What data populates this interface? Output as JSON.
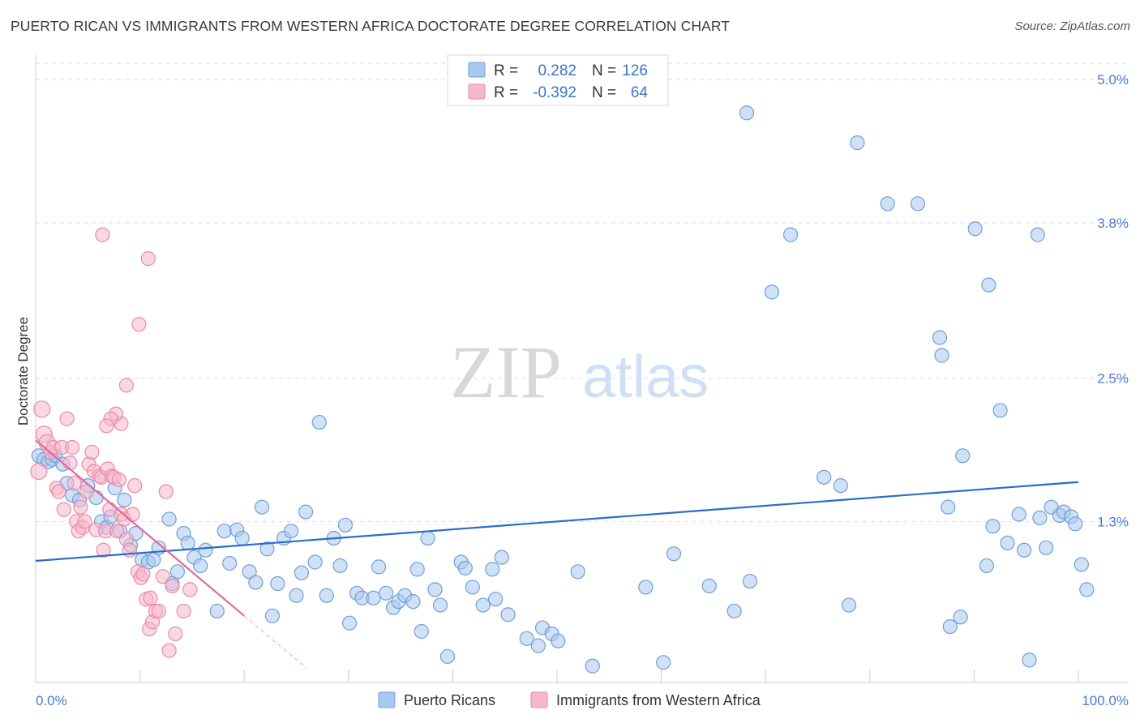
{
  "title": "PUERTO RICAN VS IMMIGRANTS FROM WESTERN AFRICA DOCTORATE DEGREE CORRELATION CHART",
  "source": "Source: ZipAtlas.com",
  "watermark": {
    "zip": "ZIP",
    "atlas": "atlas"
  },
  "colors": {
    "blue_fill": "#a9c8ef",
    "blue_stroke": "#6f9fd8",
    "blue_line": "#2a6ccb",
    "pink_fill": "#f5b8ca",
    "pink_stroke": "#e98aa8",
    "pink_line": "#e4689a",
    "tick_text": "#4a7bd0",
    "grid": "#dddddd"
  },
  "legend": {
    "rows": [
      {
        "r_label": "R =",
        "r_value": "0.282",
        "n_label": "N =",
        "n_value": "126",
        "series": "blue"
      },
      {
        "r_label": "R =",
        "r_value": "-0.392",
        "n_label": "N =",
        "n_value": "64",
        "series": "pink"
      }
    ]
  },
  "bottom_legend": [
    "Puerto Ricans",
    "Immigrants from Western Africa"
  ],
  "chart_data": {
    "type": "scatter",
    "title": "PUERTO RICAN VS IMMIGRANTS FROM WESTERN AFRICA DOCTORATE DEGREE CORRELATION CHART",
    "xlabel": "",
    "ylabel": "Doctorate Degree",
    "xlim": [
      0,
      100
    ],
    "ylim": [
      0,
      5.2
    ],
    "x_tick_labels": [
      "0.0%",
      "100.0%"
    ],
    "y_ticks": [
      1.3,
      2.5,
      3.8,
      5.0
    ],
    "y_tick_labels": [
      "1.3%",
      "2.5%",
      "3.8%",
      "5.0%"
    ],
    "grid": true,
    "series": [
      {
        "name": "Puerto Ricans",
        "color": "blue",
        "trend": {
          "x": [
            0,
            100
          ],
          "y": [
            0.97,
            1.63
          ]
        },
        "points": [
          [
            0.3,
            1.85
          ],
          [
            0.8,
            1.82
          ],
          [
            1.2,
            1.8
          ],
          [
            1.6,
            1.82
          ],
          [
            1.9,
            1.85
          ],
          [
            2.6,
            1.78
          ],
          [
            3.0,
            1.62
          ],
          [
            3.5,
            1.52
          ],
          [
            4.2,
            1.48
          ],
          [
            5.0,
            1.6
          ],
          [
            5.8,
            1.5
          ],
          [
            6.3,
            1.3
          ],
          [
            6.8,
            1.25
          ],
          [
            7.2,
            1.34
          ],
          [
            7.6,
            1.58
          ],
          [
            8.1,
            1.22
          ],
          [
            8.5,
            1.48
          ],
          [
            9.1,
            1.1
          ],
          [
            9.6,
            1.2
          ],
          [
            10.2,
            0.98
          ],
          [
            10.8,
            0.96
          ],
          [
            11.3,
            0.98
          ],
          [
            11.8,
            1.08
          ],
          [
            12.8,
            1.32
          ],
          [
            13.1,
            0.78
          ],
          [
            13.6,
            0.88
          ],
          [
            14.2,
            1.2
          ],
          [
            14.6,
            1.12
          ],
          [
            15.2,
            1.0
          ],
          [
            15.8,
            0.93
          ],
          [
            16.3,
            1.06
          ],
          [
            17.4,
            0.55
          ],
          [
            18.1,
            1.22
          ],
          [
            18.6,
            0.95
          ],
          [
            19.3,
            1.23
          ],
          [
            19.8,
            1.16
          ],
          [
            20.5,
            0.88
          ],
          [
            21.1,
            0.79
          ],
          [
            21.7,
            1.42
          ],
          [
            22.2,
            1.07
          ],
          [
            22.7,
            0.51
          ],
          [
            23.2,
            0.78
          ],
          [
            23.8,
            1.16
          ],
          [
            24.5,
            1.22
          ],
          [
            25.0,
            0.68
          ],
          [
            25.9,
            1.38
          ],
          [
            25.5,
            0.87
          ],
          [
            26.8,
            0.96
          ],
          [
            27.2,
            2.13
          ],
          [
            27.9,
            0.68
          ],
          [
            28.6,
            1.16
          ],
          [
            29.2,
            0.93
          ],
          [
            29.7,
            1.27
          ],
          [
            30.1,
            0.45
          ],
          [
            30.8,
            0.7
          ],
          [
            31.3,
            0.66
          ],
          [
            32.4,
            0.66
          ],
          [
            32.9,
            0.92
          ],
          [
            33.6,
            0.7
          ],
          [
            34.3,
            0.58
          ],
          [
            34.8,
            0.63
          ],
          [
            35.4,
            0.68
          ],
          [
            36.2,
            0.63
          ],
          [
            36.6,
            0.9
          ],
          [
            37.0,
            0.38
          ],
          [
            37.6,
            1.16
          ],
          [
            38.3,
            0.73
          ],
          [
            38.8,
            0.6
          ],
          [
            39.5,
            0.17
          ],
          [
            40.8,
            0.96
          ],
          [
            41.2,
            0.91
          ],
          [
            41.9,
            0.75
          ],
          [
            42.9,
            0.6
          ],
          [
            43.8,
            0.9
          ],
          [
            44.1,
            0.65
          ],
          [
            44.7,
            1.0
          ],
          [
            45.3,
            0.52
          ],
          [
            47.1,
            0.32
          ],
          [
            48.2,
            0.26
          ],
          [
            48.6,
            0.41
          ],
          [
            49.5,
            0.36
          ],
          [
            50.1,
            0.3
          ],
          [
            52.0,
            0.88
          ],
          [
            53.4,
            0.09
          ],
          [
            58.5,
            0.75
          ],
          [
            61.2,
            1.03
          ],
          [
            64.6,
            0.76
          ],
          [
            68.2,
            4.72
          ],
          [
            68.5,
            0.8
          ],
          [
            70.6,
            3.22
          ],
          [
            72.4,
            3.7
          ],
          [
            75.6,
            1.67
          ],
          [
            77.2,
            1.6
          ],
          [
            78.8,
            4.47
          ],
          [
            81.7,
            3.96
          ],
          [
            84.6,
            3.96
          ],
          [
            86.7,
            2.84
          ],
          [
            86.9,
            2.69
          ],
          [
            87.5,
            1.42
          ],
          [
            88.9,
            1.85
          ],
          [
            88.7,
            0.5
          ],
          [
            87.7,
            0.42
          ],
          [
            90.1,
            3.75
          ],
          [
            91.4,
            3.28
          ],
          [
            91.2,
            0.93
          ],
          [
            91.8,
            1.26
          ],
          [
            92.5,
            2.23
          ],
          [
            93.2,
            1.12
          ],
          [
            94.8,
            1.06
          ],
          [
            95.3,
            0.14
          ],
          [
            94.3,
            1.36
          ],
          [
            96.3,
            1.33
          ],
          [
            96.9,
            1.08
          ],
          [
            97.4,
            1.42
          ],
          [
            98.2,
            1.35
          ],
          [
            98.6,
            1.38
          ],
          [
            99.3,
            1.34
          ],
          [
            99.7,
            1.28
          ],
          [
            100.3,
            0.94
          ],
          [
            100.8,
            0.73
          ],
          [
            101.3,
            0.98
          ],
          [
            96.1,
            3.7
          ],
          [
            60.2,
            0.12
          ],
          [
            67.0,
            0.55
          ],
          [
            78.0,
            0.6
          ]
        ]
      },
      {
        "name": "Immigrants from Western Africa",
        "color": "pink",
        "trend": {
          "x": [
            0,
            20
          ],
          "y": [
            1.98,
            0.51
          ]
        },
        "trend_ext": {
          "x": [
            20,
            26
          ],
          "y": [
            0.51,
            0.07
          ]
        },
        "points": [
          [
            0.3,
            1.72
          ],
          [
            0.6,
            2.24
          ],
          [
            0.8,
            2.03
          ],
          [
            1.1,
            1.96
          ],
          [
            1.4,
            1.88
          ],
          [
            1.7,
            1.92
          ],
          [
            2.0,
            1.58
          ],
          [
            2.2,
            1.55
          ],
          [
            2.5,
            1.92
          ],
          [
            2.7,
            1.4
          ],
          [
            3.0,
            2.16
          ],
          [
            3.3,
            1.79
          ],
          [
            3.5,
            1.92
          ],
          [
            3.7,
            1.62
          ],
          [
            3.9,
            1.3
          ],
          [
            4.1,
            1.22
          ],
          [
            4.3,
            1.42
          ],
          [
            4.5,
            1.25
          ],
          [
            4.7,
            1.3
          ],
          [
            4.9,
            1.55
          ],
          [
            5.1,
            1.78
          ],
          [
            5.4,
            1.88
          ],
          [
            5.6,
            1.72
          ],
          [
            5.8,
            1.23
          ],
          [
            6.1,
            1.68
          ],
          [
            6.3,
            1.67
          ],
          [
            6.5,
            1.06
          ],
          [
            6.7,
            1.22
          ],
          [
            6.9,
            1.74
          ],
          [
            7.1,
            1.4
          ],
          [
            7.3,
            1.68
          ],
          [
            7.5,
            1.67
          ],
          [
            7.8,
            1.22
          ],
          [
            8.0,
            1.65
          ],
          [
            8.2,
            1.36
          ],
          [
            8.5,
            1.32
          ],
          [
            8.7,
            1.15
          ],
          [
            9.0,
            1.06
          ],
          [
            9.3,
            1.36
          ],
          [
            9.5,
            1.6
          ],
          [
            9.8,
            0.88
          ],
          [
            10.1,
            0.83
          ],
          [
            10.3,
            0.86
          ],
          [
            10.6,
            0.65
          ],
          [
            10.9,
            0.4
          ],
          [
            11.2,
            0.46
          ],
          [
            11.5,
            0.55
          ],
          [
            11.8,
            0.55
          ],
          [
            12.2,
            0.84
          ],
          [
            12.5,
            1.55
          ],
          [
            6.4,
            3.7
          ],
          [
            10.8,
            3.5
          ],
          [
            9.9,
            2.95
          ],
          [
            8.7,
            2.44
          ],
          [
            8.2,
            2.12
          ],
          [
            7.7,
            2.2
          ],
          [
            7.2,
            2.16
          ],
          [
            6.8,
            2.1
          ],
          [
            11.0,
            0.66
          ],
          [
            12.8,
            0.22
          ],
          [
            13.1,
            0.76
          ],
          [
            13.4,
            0.36
          ],
          [
            14.2,
            0.55
          ],
          [
            14.8,
            0.73
          ]
        ]
      }
    ]
  }
}
